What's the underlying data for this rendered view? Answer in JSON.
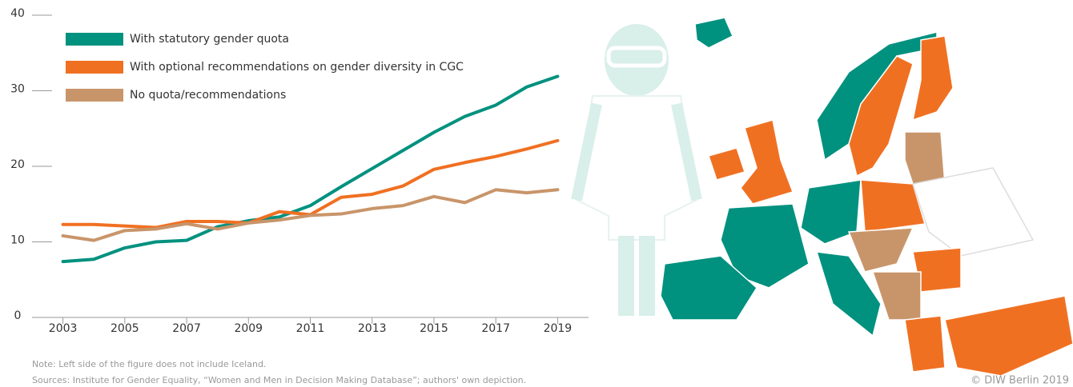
{
  "chart_data": {
    "type": "line",
    "x": [
      2003,
      2004,
      2005,
      2006,
      2007,
      2008,
      2009,
      2010,
      2011,
      2012,
      2013,
      2014,
      2015,
      2016,
      2017,
      2018,
      2019
    ],
    "series": [
      {
        "name": "With statutory gender quota",
        "color": "#00917f",
        "values": [
          7.4,
          7.7,
          9.2,
          10.0,
          10.2,
          12.0,
          12.8,
          13.3,
          14.8,
          17.3,
          19.7,
          22.1,
          24.5,
          26.6,
          28.1,
          30.5,
          31.9
        ]
      },
      {
        "name": "With optional recommendations on gender diversity in CGC",
        "color": "#f07022",
        "values": [
          12.3,
          12.3,
          12.1,
          11.9,
          12.7,
          12.7,
          12.5,
          14.0,
          13.6,
          15.9,
          16.3,
          17.4,
          19.6,
          20.5,
          21.3,
          22.3,
          23.4
        ]
      },
      {
        "name": "No quota/recommendations",
        "color": "#c8956a",
        "values": [
          10.8,
          10.2,
          11.5,
          11.7,
          12.4,
          11.7,
          12.5,
          12.9,
          13.5,
          13.7,
          14.4,
          14.8,
          16.0,
          15.2,
          16.9,
          16.5,
          16.9
        ]
      }
    ],
    "xlim": [
      2002,
      2020
    ],
    "xticks": [
      2003,
      2005,
      2007,
      2009,
      2011,
      2013,
      2015,
      2017,
      2019
    ],
    "ylim": [
      0,
      40
    ],
    "yticks": [
      0,
      10,
      20,
      30,
      40
    ],
    "note": "Note: Left side of the figure does not include Iceland.",
    "source": "Sources: Institute for Gender Equality, “Women and Men in Decision Making Database”; authors' own depiction.",
    "credit": "© DIW Berlin 2019"
  }
}
